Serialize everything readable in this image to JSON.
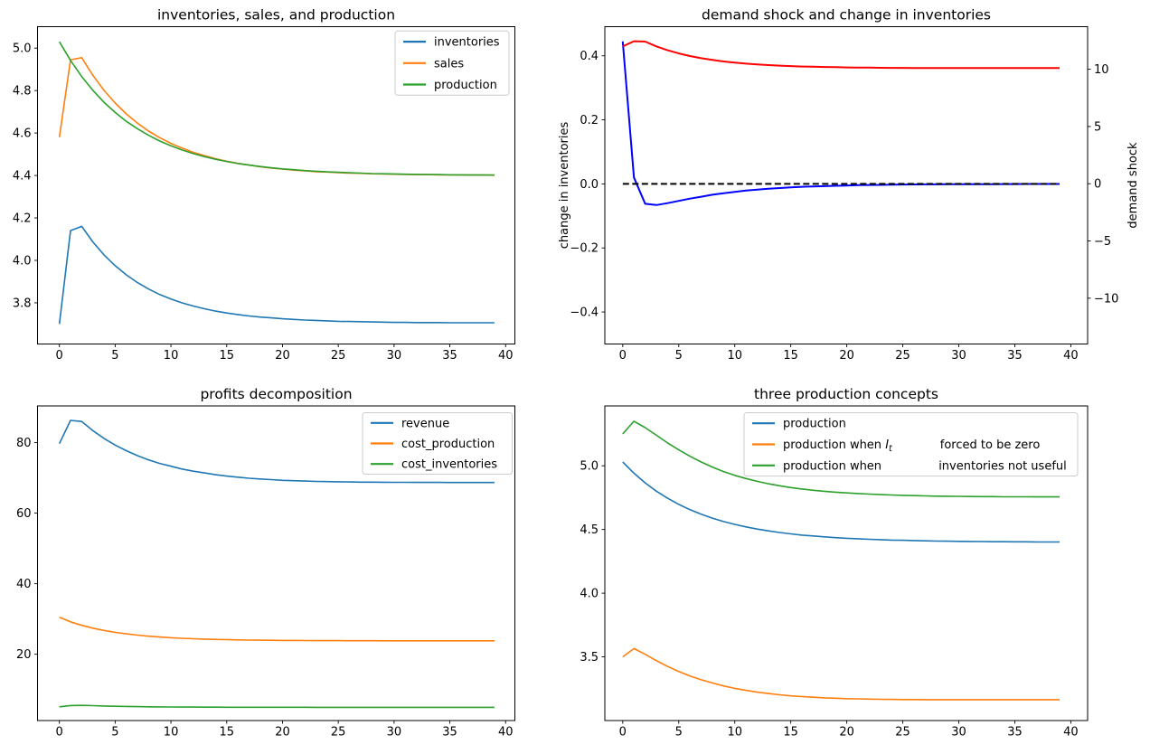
{
  "figure": {
    "background": "#ffffff",
    "colors": {
      "mpl_blue": "#1f77b4",
      "mpl_orange": "#ff7f0e",
      "mpl_green": "#2ca02c",
      "pure_blue": "#0000ff",
      "pure_red": "#ff0000",
      "black": "#000000",
      "legend_edge": "#cccccc"
    }
  },
  "chart_data": [
    {
      "type": "line",
      "title": "inventories, sales, and production",
      "xlabel": "",
      "ylabel_left": null,
      "grid": false,
      "legend_position": "upper right",
      "xlim": [
        -1.96,
        40.83
      ],
      "ylim_left": [
        3.606,
        5.101
      ],
      "xticks": {
        "values": [
          0,
          5,
          10,
          15,
          20,
          25,
          30,
          35,
          40
        ],
        "labels": [
          "0",
          "5",
          "10",
          "15",
          "20",
          "25",
          "30",
          "35",
          "40"
        ]
      },
      "yticks_left": {
        "values": [
          3.8,
          4.0,
          4.2,
          4.4,
          4.6,
          4.8,
          5.0
        ],
        "labels": [
          "3.8",
          "4.0",
          "4.2",
          "4.4",
          "4.6",
          "4.8",
          "5.0"
        ]
      },
      "x": [
        0,
        1,
        2,
        3,
        4,
        5,
        6,
        7,
        8,
        9,
        10,
        11,
        12,
        13,
        14,
        15,
        16,
        17,
        18,
        19,
        20,
        21,
        22,
        23,
        24,
        25,
        26,
        27,
        28,
        29,
        30,
        31,
        32,
        33,
        34,
        35,
        36,
        37,
        38,
        39
      ],
      "series": [
        {
          "name": "inventories",
          "label": "inventories",
          "color": "#1f77b4",
          "width": 1.6,
          "axis": "left",
          "values": [
            3.7,
            4.14,
            4.16,
            4.087,
            4.026,
            3.975,
            3.932,
            3.895,
            3.865,
            3.839,
            3.818,
            3.8,
            3.785,
            3.772,
            3.761,
            3.752,
            3.745,
            3.738,
            3.733,
            3.729,
            3.725,
            3.722,
            3.719,
            3.717,
            3.715,
            3.713,
            3.712,
            3.711,
            3.71,
            3.709,
            3.708,
            3.708,
            3.707,
            3.707,
            3.707,
            3.706,
            3.706,
            3.706,
            3.706,
            3.706
          ]
        },
        {
          "name": "sales",
          "label": "sales",
          "color": "#ff7f0e",
          "width": 1.6,
          "axis": "left",
          "values": [
            4.58,
            4.945,
            4.955,
            4.872,
            4.801,
            4.741,
            4.69,
            4.646,
            4.609,
            4.578,
            4.551,
            4.529,
            4.509,
            4.493,
            4.479,
            4.467,
            4.457,
            4.449,
            4.441,
            4.435,
            4.43,
            4.425,
            4.422,
            4.418,
            4.416,
            4.413,
            4.411,
            4.41,
            4.408,
            4.407,
            4.406,
            4.405,
            4.404,
            4.404,
            4.403,
            4.403,
            4.402,
            4.402,
            4.402,
            4.401
          ]
        },
        {
          "name": "production",
          "label": "production",
          "color": "#2ca02c",
          "width": 1.6,
          "axis": "left",
          "values": [
            5.03,
            4.942,
            4.866,
            4.801,
            4.745,
            4.697,
            4.655,
            4.62,
            4.589,
            4.562,
            4.54,
            4.52,
            4.503,
            4.489,
            4.476,
            4.466,
            4.456,
            4.449,
            4.442,
            4.436,
            4.431,
            4.427,
            4.423,
            4.42,
            4.417,
            4.415,
            4.413,
            4.411,
            4.409,
            4.408,
            4.407,
            4.406,
            4.405,
            4.404,
            4.404,
            4.403,
            4.403,
            4.402,
            4.402,
            4.402
          ]
        }
      ]
    },
    {
      "type": "line",
      "title": "demand shock and change in inventories",
      "xlabel": "",
      "ylabel_left": {
        "text": "change in inventories",
        "color": "#0000ff"
      },
      "ylabel_right": {
        "text": "demand shock",
        "color": "#ff0000"
      },
      "grid": false,
      "legend_position": null,
      "xlim": [
        -1.6,
        41.5
      ],
      "ylim_left": [
        -0.5,
        0.491
      ],
      "ylim_right": [
        -14.0,
        13.72
      ],
      "xticks": {
        "values": [
          0,
          5,
          10,
          15,
          20,
          25,
          30,
          35,
          40
        ],
        "labels": [
          "0",
          "5",
          "10",
          "15",
          "20",
          "25",
          "30",
          "35",
          "40"
        ]
      },
      "yticks_left": {
        "values": [
          -0.4,
          -0.2,
          0.0,
          0.2,
          0.4
        ],
        "labels": [
          "−0.4",
          "−0.2",
          "0.0",
          "0.2",
          "0.4"
        ]
      },
      "yticks_right": {
        "values": [
          -10,
          -5,
          0,
          5,
          10
        ],
        "labels": [
          "−10",
          "−5",
          "0",
          "5",
          "10"
        ]
      },
      "x": [
        0,
        1,
        2,
        3,
        4,
        5,
        6,
        7,
        8,
        9,
        10,
        11,
        12,
        13,
        14,
        15,
        16,
        17,
        18,
        19,
        20,
        21,
        22,
        23,
        24,
        25,
        26,
        27,
        28,
        29,
        30,
        31,
        32,
        33,
        34,
        35,
        36,
        37,
        38,
        39
      ],
      "series": [
        {
          "name": "change-in-inventories",
          "label": null,
          "color": "#0000ff",
          "width": 2,
          "axis": "left",
          "in_legend": false,
          "values": [
            0.445,
            0.02,
            -0.062,
            -0.066,
            -0.06,
            -0.053,
            -0.046,
            -0.04,
            -0.034,
            -0.029,
            -0.025,
            -0.021,
            -0.018,
            -0.015,
            -0.013,
            -0.011,
            -0.009,
            -0.008,
            -0.007,
            -0.006,
            -0.005,
            -0.004,
            -0.0035,
            -0.003,
            -0.0025,
            -0.002,
            -0.0018,
            -0.0015,
            -0.0013,
            -0.0011,
            -0.001,
            -0.0009,
            -0.0008,
            -0.0007,
            -0.0006,
            -0.0005,
            -0.0004,
            -0.0004,
            -0.0003,
            -0.0003
          ]
        },
        {
          "name": "zero-line",
          "label": null,
          "color": "#000000",
          "width": 2,
          "axis": "left",
          "dash": "7 3.5",
          "const": 0,
          "in_legend": false
        },
        {
          "name": "demand-shock",
          "label": null,
          "color": "#ff0000",
          "width": 2,
          "axis": "right",
          "in_legend": false,
          "values": [
            12.0,
            12.45,
            12.42,
            12.0,
            11.66,
            11.38,
            11.15,
            10.96,
            10.81,
            10.68,
            10.58,
            10.49,
            10.42,
            10.36,
            10.32,
            10.28,
            10.24,
            10.22,
            10.2,
            10.18,
            10.16,
            10.15,
            10.14,
            10.13,
            10.12,
            10.12,
            10.11,
            10.11,
            10.11,
            10.1,
            10.1,
            10.1,
            10.1,
            10.1,
            10.1,
            10.1,
            10.1,
            10.1,
            10.1,
            10.1
          ]
        }
      ]
    },
    {
      "type": "line",
      "title": "profits decomposition",
      "xlabel": "",
      "ylabel_left": null,
      "grid": false,
      "legend_position": "upper right",
      "xlim": [
        -1.96,
        40.83
      ],
      "ylim_left": [
        1.2,
        90.4
      ],
      "xticks": {
        "values": [
          0,
          5,
          10,
          15,
          20,
          25,
          30,
          35,
          40
        ],
        "labels": [
          "0",
          "5",
          "10",
          "15",
          "20",
          "25",
          "30",
          "35",
          "40"
        ]
      },
      "yticks_left": {
        "values": [
          20,
          40,
          60,
          80
        ],
        "labels": [
          "20",
          "40",
          "60",
          "80"
        ]
      },
      "x": [
        0,
        1,
        2,
        3,
        4,
        5,
        6,
        7,
        8,
        9,
        10,
        11,
        12,
        13,
        14,
        15,
        16,
        17,
        18,
        19,
        20,
        21,
        22,
        23,
        24,
        25,
        26,
        27,
        28,
        29,
        30,
        31,
        32,
        33,
        34,
        35,
        36,
        37,
        38,
        39
      ],
      "series": [
        {
          "name": "revenue",
          "label": "revenue",
          "color": "#1f77b4",
          "width": 1.6,
          "axis": "left",
          "values": [
            79.7,
            86.3,
            86.0,
            83.4,
            81.2,
            79.3,
            77.7,
            76.3,
            75.1,
            74.1,
            73.3,
            72.5,
            71.9,
            71.4,
            70.9,
            70.5,
            70.2,
            69.9,
            69.7,
            69.5,
            69.3,
            69.2,
            69.1,
            69.0,
            68.95,
            68.9,
            68.85,
            68.8,
            68.78,
            68.76,
            68.74,
            68.73,
            68.72,
            68.71,
            68.71,
            68.7,
            68.7,
            68.7,
            68.7,
            68.7
          ]
        },
        {
          "name": "cost-production",
          "label": "cost_production",
          "color": "#ff7f0e",
          "width": 1.6,
          "axis": "left",
          "values": [
            30.5,
            29.2,
            28.2,
            27.4,
            26.75,
            26.2,
            25.78,
            25.42,
            25.12,
            24.88,
            24.69,
            24.53,
            24.4,
            24.29,
            24.2,
            24.13,
            24.07,
            24.02,
            23.98,
            23.95,
            23.92,
            23.9,
            23.88,
            23.87,
            23.86,
            23.85,
            23.84,
            23.83,
            23.83,
            23.82,
            23.82,
            23.81,
            23.81,
            23.81,
            23.8,
            23.8,
            23.8,
            23.8,
            23.8,
            23.8
          ]
        },
        {
          "name": "cost-inventories",
          "label": "cost_inventories",
          "color": "#2ca02c",
          "width": 1.6,
          "axis": "left",
          "values": [
            5.1,
            5.45,
            5.5,
            5.42,
            5.33,
            5.25,
            5.19,
            5.14,
            5.1,
            5.07,
            5.05,
            5.03,
            5.01,
            5.0,
            4.99,
            4.98,
            4.98,
            4.97,
            4.97,
            4.96,
            4.96,
            4.96,
            4.96,
            4.95,
            4.95,
            4.95,
            4.95,
            4.95,
            4.95,
            4.95,
            4.95,
            4.95,
            4.95,
            4.95,
            4.95,
            4.95,
            4.95,
            4.95,
            4.95,
            4.95
          ]
        }
      ]
    },
    {
      "type": "line",
      "title": "three production concepts",
      "xlabel": "",
      "ylabel_left": null,
      "grid": false,
      "legend_position": "upper right",
      "xlim": [
        -1.6,
        41.5
      ],
      "ylim_left": [
        3.0,
        5.47
      ],
      "xticks": {
        "values": [
          0,
          5,
          10,
          15,
          20,
          25,
          30,
          35,
          40
        ],
        "labels": [
          "0",
          "5",
          "10",
          "15",
          "20",
          "25",
          "30",
          "35",
          "40"
        ]
      },
      "yticks_left": {
        "values": [
          3.5,
          4.0,
          4.5,
          5.0
        ],
        "labels": [
          "3.5",
          "4.0",
          "4.5",
          "5.0"
        ]
      },
      "x": [
        0,
        1,
        2,
        3,
        4,
        5,
        6,
        7,
        8,
        9,
        10,
        11,
        12,
        13,
        14,
        15,
        16,
        17,
        18,
        19,
        20,
        21,
        22,
        23,
        24,
        25,
        26,
        27,
        28,
        29,
        30,
        31,
        32,
        33,
        34,
        35,
        36,
        37,
        38,
        39
      ],
      "series": [
        {
          "name": "production",
          "label": "production",
          "color": "#1f77b4",
          "width": 1.6,
          "axis": "left",
          "values": [
            5.03,
            4.942,
            4.866,
            4.801,
            4.745,
            4.697,
            4.655,
            4.62,
            4.589,
            4.562,
            4.54,
            4.52,
            4.503,
            4.489,
            4.476,
            4.466,
            4.456,
            4.449,
            4.442,
            4.436,
            4.431,
            4.427,
            4.423,
            4.42,
            4.417,
            4.415,
            4.413,
            4.411,
            4.409,
            4.408,
            4.407,
            4.406,
            4.405,
            4.404,
            4.404,
            4.403,
            4.403,
            4.402,
            4.402,
            4.402
          ]
        },
        {
          "name": "production-when-It-forced-to-be-zero",
          "label_segments": [
            {
              "text": "production when  "
            },
            {
              "text": "I",
              "style": "math-italic",
              "sub": "t"
            },
            {
              "gap": 53
            },
            {
              "text": "forced to be zero"
            }
          ],
          "color": "#ff7f0e",
          "width": 1.6,
          "axis": "left",
          "values": [
            3.5,
            3.565,
            3.52,
            3.47,
            3.425,
            3.385,
            3.35,
            3.32,
            3.295,
            3.272,
            3.253,
            3.237,
            3.223,
            3.212,
            3.202,
            3.194,
            3.188,
            3.183,
            3.178,
            3.175,
            3.172,
            3.17,
            3.168,
            3.167,
            3.166,
            3.165,
            3.165,
            3.164,
            3.164,
            3.164,
            3.164,
            3.164,
            3.164,
            3.164,
            3.164,
            3.164,
            3.164,
            3.164,
            3.164,
            3.164
          ]
        },
        {
          "name": "production-when-inventories-not-useful",
          "label_segments": [
            {
              "text": "production when "
            },
            {
              "gap": 59
            },
            {
              "text": "inventories not useful"
            }
          ],
          "color": "#2ca02c",
          "width": 1.6,
          "axis": "left",
          "values": [
            5.25,
            5.35,
            5.3,
            5.24,
            5.18,
            5.125,
            5.075,
            5.03,
            4.99,
            4.955,
            4.925,
            4.9,
            4.878,
            4.859,
            4.843,
            4.829,
            4.818,
            4.808,
            4.8,
            4.793,
            4.787,
            4.782,
            4.778,
            4.774,
            4.771,
            4.768,
            4.766,
            4.764,
            4.762,
            4.761,
            4.76,
            4.759,
            4.758,
            4.758,
            4.757,
            4.757,
            4.757,
            4.756,
            4.756,
            4.756
          ]
        }
      ]
    }
  ]
}
